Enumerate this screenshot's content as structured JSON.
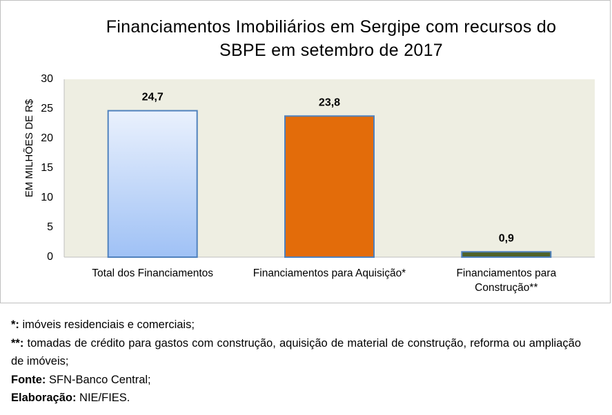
{
  "chart_data": {
    "type": "bar",
    "title_line1": "Financiamentos Imobiliários em Sergipe com recursos do",
    "title_line2": "SBPE em setembro de 2017",
    "ylabel": "EM MILHÕES DE R$",
    "ylim": [
      0,
      30
    ],
    "yticks": [
      "0",
      "5",
      "10",
      "15",
      "20",
      "25",
      "30"
    ],
    "categories": [
      [
        "Total dos Financiamentos"
      ],
      [
        "Financiamentos para Aquisição*"
      ],
      [
        "Financiamentos para",
        "Construção**"
      ]
    ],
    "values": [
      24.7,
      23.8,
      0.9
    ],
    "value_labels": [
      "24,7",
      "23,8",
      "0,9"
    ],
    "grid": false,
    "plot_background": "#eeeee2",
    "bar_colors": [
      "gradient-light-blue",
      "#e36c0a",
      "#4f6228"
    ],
    "bar_border": "#4f81bd"
  },
  "notes": {
    "note1_key": "*:",
    "note1_text": " imóveis residenciais e comerciais;",
    "note2_key": "**:",
    "note2_text": " tomadas de crédito para gastos com construção, aquisição de material de construção, reforma ou ampliação de imóveis;",
    "source_key": "Fonte:",
    "source_text": " SFN-Banco Central;",
    "elab_key": "Elaboração:",
    "elab_text": " NIE/FIES."
  }
}
